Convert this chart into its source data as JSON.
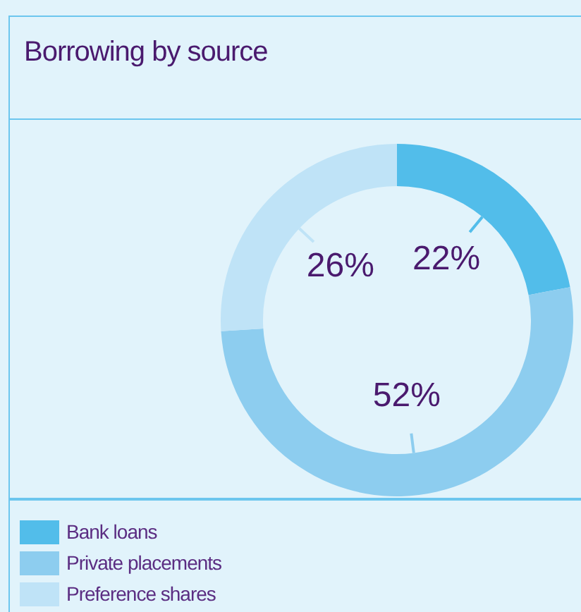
{
  "chart_data": {
    "type": "donut",
    "title": "Borrowing by source",
    "categories": [
      "Bank loans",
      "Private placements",
      "Preference shares"
    ],
    "values": [
      22,
      52,
      26
    ],
    "colors": [
      "#52bdea",
      "#8dcdef",
      "#bfe3f7"
    ],
    "value_labels": [
      "22%",
      "52%",
      "26%"
    ],
    "legend": "bottom left"
  }
}
